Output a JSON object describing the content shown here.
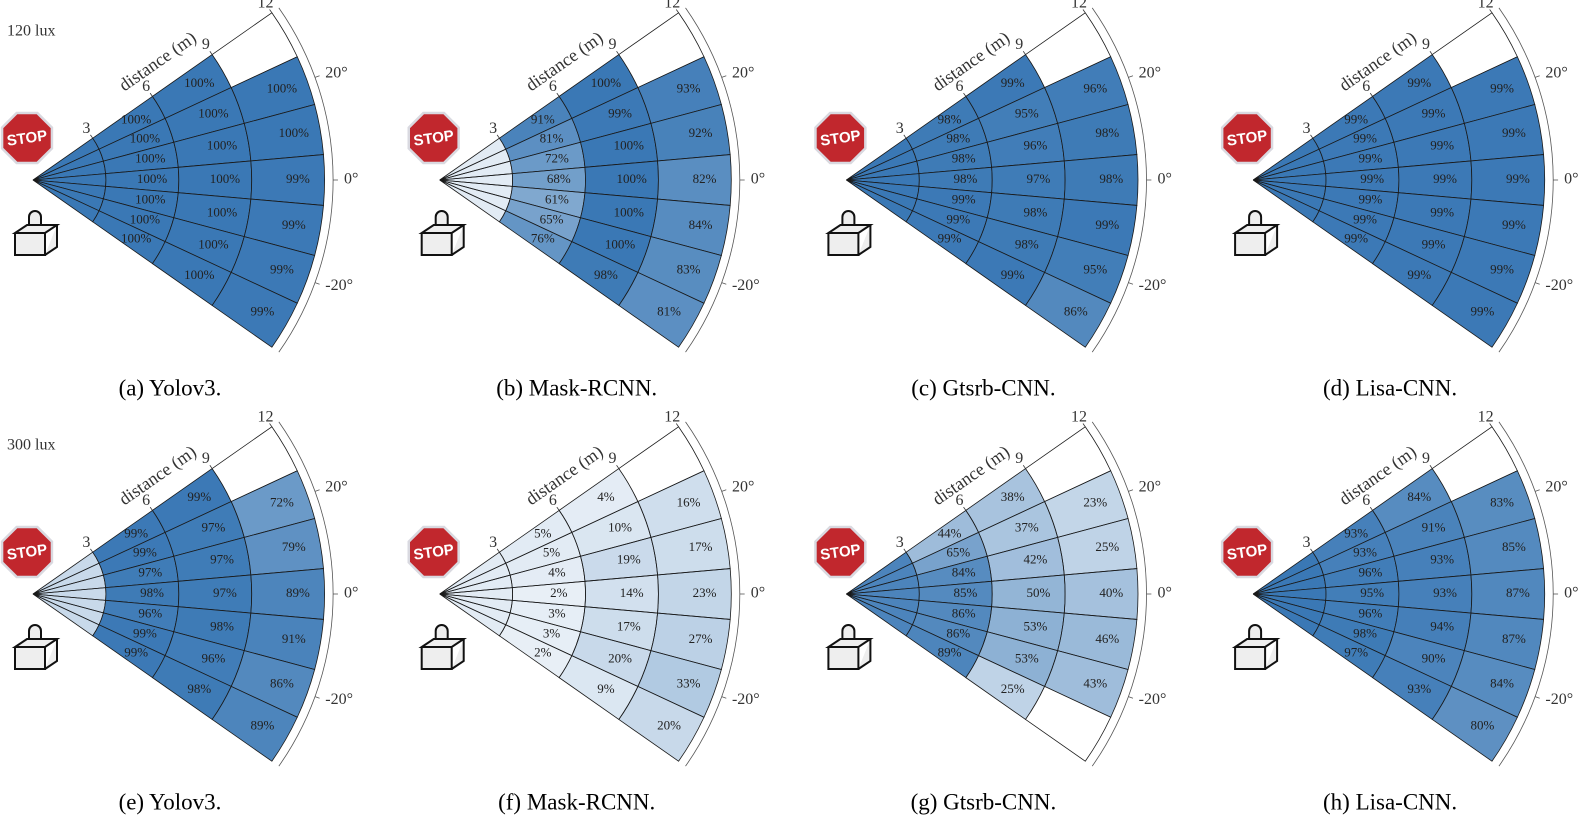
{
  "stop_sign_text": "STOP",
  "chart_data": [
    {
      "type": "polar_heatmap",
      "title": "(a) Yolov3.",
      "annotation": "120 lux",
      "r_label": "distance (m)",
      "color": "#3a78b5",
      "rlim": [
        0,
        12
      ],
      "rticks": [
        3,
        6,
        9,
        12
      ],
      "thetalim": [
        -35,
        35
      ],
      "thetaticks": [
        {
          "value": 20,
          "label": "20°"
        },
        {
          "value": 0,
          "label": "0°"
        },
        {
          "value": -20,
          "label": "-20°"
        }
      ],
      "values": [
        [
          100,
          100,
          100,
          100,
          100,
          100,
          100
        ],
        [
          100,
          100,
          100,
          100,
          100,
          100,
          100
        ],
        [
          100,
          100,
          100,
          100,
          100,
          100,
          100
        ],
        [
          null,
          100,
          100,
          99,
          99,
          99,
          99
        ]
      ],
      "value_labels": [
        [
          null,
          null,
          null,
          null,
          null,
          null,
          null
        ],
        [
          "100%",
          "100%",
          "100%",
          "100%",
          "100%",
          "100%",
          "100%"
        ],
        [
          "100%",
          "100%",
          "100%",
          "100%",
          "100%",
          "100%",
          "100%"
        ],
        [
          null,
          "100%",
          "100%",
          "99%",
          "99%",
          "99%",
          "99%"
        ]
      ]
    },
    {
      "type": "polar_heatmap",
      "title": "(b) Mask-RCNN.",
      "r_label": "distance (m)",
      "color": "#3a78b5",
      "rlim": [
        0,
        12
      ],
      "rticks": [
        3,
        6,
        9,
        12
      ],
      "thetalim": [
        -35,
        35
      ],
      "thetaticks": [
        {
          "value": 20,
          "label": "20°"
        },
        {
          "value": 0,
          "label": "0°"
        },
        {
          "value": -20,
          "label": "-20°"
        }
      ],
      "values": [
        [
          5,
          5,
          5,
          5,
          5,
          5,
          5
        ],
        [
          91,
          81,
          72,
          68,
          61,
          65,
          76
        ],
        [
          100,
          99,
          100,
          100,
          100,
          100,
          98
        ],
        [
          null,
          93,
          92,
          82,
          84,
          83,
          81
        ]
      ],
      "value_labels": [
        [
          null,
          null,
          null,
          null,
          null,
          null,
          null
        ],
        [
          "91%",
          "81%",
          "72%",
          "68%",
          "61%",
          "65%",
          "76%"
        ],
        [
          "100%",
          "99%",
          "100%",
          "100%",
          "100%",
          "100%",
          "98%"
        ],
        [
          null,
          "93%",
          "92%",
          "82%",
          "84%",
          "83%",
          "81%"
        ]
      ]
    },
    {
      "type": "polar_heatmap",
      "title": "(c) Gtsrb-CNN.",
      "r_label": "distance (m)",
      "color": "#3a78b5",
      "rlim": [
        0,
        12
      ],
      "rticks": [
        3,
        6,
        9,
        12
      ],
      "thetalim": [
        -35,
        35
      ],
      "thetaticks": [
        {
          "value": 20,
          "label": "20°"
        },
        {
          "value": 0,
          "label": "0°"
        },
        {
          "value": -20,
          "label": "-20°"
        }
      ],
      "values": [
        [
          100,
          100,
          100,
          100,
          100,
          100,
          100
        ],
        [
          98,
          98,
          98,
          98,
          99,
          99,
          99
        ],
        [
          99,
          95,
          96,
          97,
          98,
          98,
          99
        ],
        [
          null,
          96,
          98,
          98,
          99,
          95,
          86
        ]
      ],
      "value_labels": [
        [
          null,
          null,
          null,
          null,
          null,
          null,
          null
        ],
        [
          "98%",
          "98%",
          "98%",
          "98%",
          "99%",
          "99%",
          "99%"
        ],
        [
          "99%",
          "95%",
          "96%",
          "97%",
          "98%",
          "98%",
          "99%"
        ],
        [
          null,
          "96%",
          "98%",
          "98%",
          "99%",
          "95%",
          "86%"
        ]
      ]
    },
    {
      "type": "polar_heatmap",
      "title": "(d) Lisa-CNN.",
      "r_label": "distance (m)",
      "color": "#3a78b5",
      "rlim": [
        0,
        12
      ],
      "rticks": [
        3,
        6,
        9,
        12
      ],
      "thetalim": [
        -35,
        35
      ],
      "thetaticks": [
        {
          "value": 20,
          "label": "20°"
        },
        {
          "value": 0,
          "label": "0°"
        },
        {
          "value": -20,
          "label": "-20°"
        }
      ],
      "values": [
        [
          100,
          100,
          100,
          100,
          100,
          100,
          100
        ],
        [
          99,
          99,
          99,
          99,
          99,
          99,
          99
        ],
        [
          99,
          99,
          99,
          99,
          99,
          99,
          99
        ],
        [
          null,
          99,
          99,
          99,
          99,
          99,
          99
        ]
      ],
      "value_labels": [
        [
          null,
          null,
          null,
          null,
          null,
          null,
          null
        ],
        [
          "99%",
          "99%",
          "99%",
          "99%",
          "99%",
          "99%",
          "99%"
        ],
        [
          "99%",
          "99%",
          "99%",
          "99%",
          "99%",
          "99%",
          "99%"
        ],
        [
          null,
          "99%",
          "99%",
          "99%",
          "99%",
          "99%",
          "99%"
        ]
      ]
    },
    {
      "type": "polar_heatmap",
      "title": "(e) Yolov3.",
      "annotation": "300 lux",
      "r_label": "distance (m)",
      "color": "#3a78b5",
      "rlim": [
        0,
        12
      ],
      "rticks": [
        3,
        6,
        9,
        12
      ],
      "thetalim": [
        -35,
        35
      ],
      "thetaticks": [
        {
          "value": 20,
          "label": "20°"
        },
        {
          "value": 0,
          "label": "0°"
        },
        {
          "value": -20,
          "label": "-20°"
        }
      ],
      "values": [
        [
          20,
          20,
          20,
          20,
          20,
          20,
          20
        ],
        [
          99,
          99,
          97,
          98,
          96,
          99,
          99
        ],
        [
          99,
          97,
          97,
          97,
          98,
          96,
          98
        ],
        [
          null,
          72,
          79,
          89,
          91,
          86,
          89
        ]
      ],
      "value_labels": [
        [
          null,
          null,
          null,
          null,
          null,
          null,
          null
        ],
        [
          "99%",
          "99%",
          "97%",
          "98%",
          "96%",
          "99%",
          "99%"
        ],
        [
          "99%",
          "97%",
          "97%",
          "97%",
          "98%",
          "96%",
          "98%"
        ],
        [
          null,
          "72%",
          "79%",
          "89%",
          "91%",
          "86%",
          "89%"
        ]
      ]
    },
    {
      "type": "polar_heatmap",
      "title": "(f) Mask-RCNN.",
      "r_label": "distance (m)",
      "color": "#3a78b5",
      "rlim": [
        0,
        12
      ],
      "rticks": [
        3,
        6,
        9,
        12
      ],
      "thetalim": [
        -35,
        35
      ],
      "thetaticks": [
        {
          "value": 20,
          "label": "20°"
        },
        {
          "value": 0,
          "label": "0°"
        },
        {
          "value": -20,
          "label": "-20°"
        }
      ],
      "values": [
        [
          5,
          5,
          5,
          5,
          5,
          5,
          5
        ],
        [
          5,
          5,
          4,
          2,
          3,
          3,
          2
        ],
        [
          4,
          10,
          19,
          14,
          17,
          20,
          9
        ],
        [
          null,
          16,
          17,
          23,
          27,
          33,
          20
        ]
      ],
      "value_labels": [
        [
          null,
          null,
          null,
          null,
          null,
          null,
          null
        ],
        [
          "5%",
          "5%",
          "4%",
          "2%",
          "3%",
          "3%",
          "2%"
        ],
        [
          "4%",
          "10%",
          "19%",
          "14%",
          "17%",
          "20%",
          "9%"
        ],
        [
          null,
          "16%",
          "17%",
          "23%",
          "27%",
          "33%",
          "20%"
        ]
      ]
    },
    {
      "type": "polar_heatmap",
      "title": "(g) Gtsrb-CNN.",
      "r_label": "distance (m)",
      "color": "#3a78b5",
      "rlim": [
        0,
        12
      ],
      "rticks": [
        3,
        6,
        9,
        12
      ],
      "thetalim": [
        -35,
        35
      ],
      "thetaticks": [
        {
          "value": 20,
          "label": "20°"
        },
        {
          "value": 0,
          "label": "0°"
        },
        {
          "value": -20,
          "label": "-20°"
        }
      ],
      "values": [
        [
          90,
          90,
          90,
          90,
          90,
          90,
          90
        ],
        [
          44,
          65,
          84,
          85,
          86,
          86,
          89
        ],
        [
          38,
          37,
          42,
          50,
          53,
          53,
          25
        ],
        [
          null,
          23,
          25,
          40,
          46,
          43,
          null
        ]
      ],
      "value_labels": [
        [
          null,
          null,
          null,
          null,
          null,
          null,
          null
        ],
        [
          "44%",
          "65%",
          "84%",
          "85%",
          "86%",
          "86%",
          "89%"
        ],
        [
          "38%",
          "37%",
          "42%",
          "50%",
          "53%",
          "53%",
          "25%"
        ],
        [
          null,
          "23%",
          "25%",
          "40%",
          "46%",
          "43%",
          null
        ]
      ]
    },
    {
      "type": "polar_heatmap",
      "title": "(h) Lisa-CNN.",
      "r_label": "distance (m)",
      "color": "#3a78b5",
      "rlim": [
        0,
        12
      ],
      "rticks": [
        3,
        6,
        9,
        12
      ],
      "thetalim": [
        -35,
        35
      ],
      "thetaticks": [
        {
          "value": 20,
          "label": "20°"
        },
        {
          "value": 0,
          "label": "0°"
        },
        {
          "value": -20,
          "label": "-20°"
        }
      ],
      "values": [
        [
          100,
          100,
          100,
          100,
          100,
          100,
          100
        ],
        [
          93,
          93,
          96,
          95,
          96,
          98,
          97
        ],
        [
          84,
          91,
          93,
          93,
          94,
          90,
          93
        ],
        [
          null,
          83,
          85,
          87,
          87,
          84,
          80
        ]
      ],
      "value_labels": [
        [
          null,
          null,
          null,
          null,
          null,
          null,
          null
        ],
        [
          "93%",
          "93%",
          "96%",
          "95%",
          "96%",
          "98%",
          "97%"
        ],
        [
          "84%",
          "91%",
          "93%",
          "93%",
          "94%",
          "90%",
          "93%"
        ],
        [
          null,
          "83%",
          "85%",
          "87%",
          "87%",
          "84%",
          "80%"
        ]
      ]
    }
  ]
}
